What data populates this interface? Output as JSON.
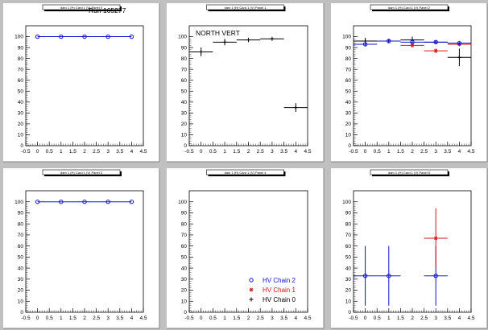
{
  "colors": {
    "pad": "#ffffff",
    "canvas": "#c0c0c0",
    "chain0": "#000000",
    "chain1": "#dd1111",
    "chain2": "#1111cc"
  },
  "chart_data": [
    {
      "type": "scatter",
      "title": "dam 1 (H) Card 1 (V) Panel 0",
      "annotation": "Run 165277",
      "xlim": [
        -0.5,
        4.5
      ],
      "ylim": [
        0,
        110
      ],
      "xticks": [
        "-0.5",
        "0",
        "0.5",
        "1",
        "1.5",
        "2",
        "2.5",
        "3",
        "3.5",
        "4",
        "4.5"
      ],
      "yticks": [
        "0",
        "10",
        "20",
        "30",
        "40",
        "50",
        "60",
        "70",
        "80",
        "90",
        "100"
      ],
      "series": [
        {
          "color": "#1111cc",
          "marker": "circle",
          "line": true,
          "points": [
            {
              "x": 0,
              "y": 100,
              "xerr": 0,
              "yerr": 0
            },
            {
              "x": 1,
              "y": 100,
              "xerr": 0,
              "yerr": 0
            },
            {
              "x": 2,
              "y": 100,
              "xerr": 0,
              "yerr": 0
            },
            {
              "x": 3,
              "y": 100,
              "xerr": 0,
              "yerr": 0
            },
            {
              "x": 4,
              "y": 100,
              "xerr": 0,
              "yerr": 0
            }
          ]
        }
      ]
    },
    {
      "type": "scatter",
      "title": "dam 1 (H) Card 1 (V) Panel 1",
      "annotation": "NORTH VERT",
      "xlim": [
        -0.5,
        4.5
      ],
      "ylim": [
        0,
        110
      ],
      "xticks": [
        "-0.5",
        "0",
        "0.5",
        "1",
        "1.5",
        "2",
        "2.5",
        "3",
        "3.5",
        "4",
        "4.5"
      ],
      "yticks": [
        "0",
        "10",
        "20",
        "30",
        "40",
        "50",
        "60",
        "70",
        "80",
        "90",
        "100"
      ],
      "series": [
        {
          "color": "#000000",
          "marker": "cross",
          "line": false,
          "points": [
            {
              "x": 0,
              "y": 86,
              "xerr": 0.5,
              "yerr": 4
            },
            {
              "x": 1,
              "y": 95,
              "xerr": 0.5,
              "yerr": 3
            },
            {
              "x": 2,
              "y": 97,
              "xerr": 0.5,
              "yerr": 2
            },
            {
              "x": 3,
              "y": 98,
              "xerr": 0.5,
              "yerr": 1
            },
            {
              "x": 4,
              "y": 35,
              "xerr": 0.5,
              "yerr": 4
            }
          ]
        }
      ]
    },
    {
      "type": "scatter",
      "title": "dam 1 (H) Card 1 (V) Panel 2",
      "annotation": "",
      "xlim": [
        -0.5,
        4.5
      ],
      "ylim": [
        0,
        110
      ],
      "xticks": [
        "-0.5",
        "0",
        "0.5",
        "1",
        "1.5",
        "2",
        "2.5",
        "3",
        "3.5",
        "4",
        "4.5"
      ],
      "yticks": [
        "0",
        "10",
        "20",
        "30",
        "40",
        "50",
        "60",
        "70",
        "80",
        "90",
        "100"
      ],
      "series": [
        {
          "color": "#000000",
          "marker": "cross",
          "line": false,
          "points": [
            {
              "x": 0,
              "y": 96,
              "xerr": 0.5,
              "yerr": 3
            },
            {
              "x": 1,
              "y": 96,
              "xerr": 0.5,
              "yerr": 2
            },
            {
              "x": 2,
              "y": 97,
              "xerr": 0.5,
              "yerr": 3
            },
            {
              "x": 3,
              "y": 95,
              "xerr": 0.5,
              "yerr": 1
            },
            {
              "x": 4,
              "y": 81,
              "xerr": 0.5,
              "yerr": 8
            }
          ]
        },
        {
          "color": "#dd1111",
          "marker": "star",
          "line": false,
          "points": [
            {
              "x": 2,
              "y": 92,
              "xerr": 0.5,
              "yerr": 2
            },
            {
              "x": 3,
              "y": 87,
              "xerr": 0.5,
              "yerr": 2
            },
            {
              "x": 4,
              "y": 93,
              "xerr": 0.5,
              "yerr": 1
            }
          ]
        },
        {
          "color": "#1111cc",
          "marker": "circle",
          "line": false,
          "points": [
            {
              "x": 0,
              "y": 93,
              "xerr": 0.5,
              "yerr": 2
            },
            {
              "x": 1,
              "y": 96,
              "xerr": 0.5,
              "yerr": 1
            },
            {
              "x": 2,
              "y": 95,
              "xerr": 0.5,
              "yerr": 2
            },
            {
              "x": 3,
              "y": 95,
              "xerr": 0.5,
              "yerr": 1
            },
            {
              "x": 4,
              "y": 94,
              "xerr": 0.5,
              "yerr": 1
            }
          ]
        }
      ]
    },
    {
      "type": "scatter",
      "title": "dam 1 (H) Card 1 (V) Panel 3",
      "annotation": "",
      "xlim": [
        -0.5,
        4.5
      ],
      "ylim": [
        0,
        110
      ],
      "xticks": [
        "-0.5",
        "0",
        "0.5",
        "1",
        "1.5",
        "2",
        "2.5",
        "3",
        "3.5",
        "4",
        "4.5"
      ],
      "yticks": [
        "0",
        "10",
        "20",
        "30",
        "40",
        "50",
        "60",
        "70",
        "80",
        "90",
        "100"
      ],
      "series": [
        {
          "color": "#1111cc",
          "marker": "circle",
          "line": true,
          "points": [
            {
              "x": 0,
              "y": 100,
              "xerr": 0,
              "yerr": 0
            },
            {
              "x": 1,
              "y": 100,
              "xerr": 0,
              "yerr": 0
            },
            {
              "x": 2,
              "y": 100,
              "xerr": 0,
              "yerr": 0
            },
            {
              "x": 3,
              "y": 100,
              "xerr": 0,
              "yerr": 0
            },
            {
              "x": 4,
              "y": 100,
              "xerr": 0,
              "yerr": 0
            }
          ]
        }
      ]
    },
    {
      "type": "scatter",
      "title": "dam 1 (H) Card 1 (V) Panel 4",
      "annotation": "",
      "xlim": [
        -0.5,
        4.5
      ],
      "ylim": [
        0,
        110
      ],
      "xticks": [
        "-0.5",
        "0",
        "0.5",
        "1",
        "1.5",
        "2",
        "2.5",
        "3",
        "3.5",
        "4",
        "4.5"
      ],
      "yticks": [
        "0",
        "10",
        "20",
        "30",
        "40",
        "50",
        "60",
        "70",
        "80",
        "90",
        "100"
      ],
      "legend": {
        "position": "bottom-right",
        "entries": [
          {
            "label": "HV Chain 2",
            "color": "#1111cc",
            "marker": "circle"
          },
          {
            "label": "HV Chain 1",
            "color": "#dd1111",
            "marker": "star"
          },
          {
            "label": "HV Chain 0",
            "color": "#000000",
            "marker": "cross"
          }
        ]
      },
      "series": []
    },
    {
      "type": "scatter",
      "title": "dam 1 (H) Card 1 (V) Panel 5",
      "annotation": "",
      "xlim": [
        -0.5,
        4.5
      ],
      "ylim": [
        0,
        110
      ],
      "xticks": [
        "-0.5",
        "0",
        "0.5",
        "1",
        "1.5",
        "2",
        "2.5",
        "3",
        "3.5",
        "4",
        "4.5"
      ],
      "yticks": [
        "0",
        "10",
        "20",
        "30",
        "40",
        "50",
        "60",
        "70",
        "80",
        "90",
        "100"
      ],
      "series": [
        {
          "color": "#1111cc",
          "marker": "circle",
          "line": false,
          "points": [
            {
              "x": 0,
              "y": 33,
              "xerr": 0.5,
              "yerr": 27
            },
            {
              "x": 1,
              "y": 33,
              "xerr": 0.5,
              "yerr": 27
            },
            {
              "x": 3,
              "y": 33,
              "xerr": 0.5,
              "yerr": 27
            }
          ]
        },
        {
          "color": "#dd1111",
          "marker": "star",
          "line": false,
          "points": [
            {
              "x": 3,
              "y": 67,
              "xerr": 0.5,
              "yerr": 27
            }
          ]
        }
      ]
    }
  ]
}
